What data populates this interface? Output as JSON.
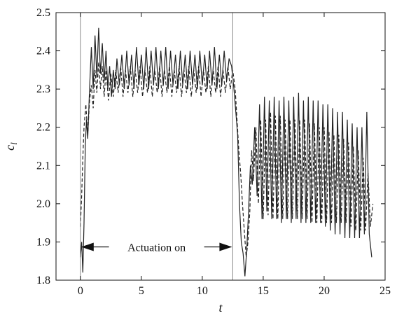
{
  "chart_data": {
    "type": "line",
    "xlabel": "t",
    "ylabel": "c",
    "ylabel_sub": "l",
    "xlim": [
      -2,
      25
    ],
    "ylim": [
      1.8,
      2.5
    ],
    "x_ticks": [
      0,
      5,
      10,
      15,
      20,
      25
    ],
    "x_tick_labels": [
      "0",
      "5",
      "10",
      "15",
      "20",
      "25"
    ],
    "y_ticks": [
      1.8,
      1.9,
      2.0,
      2.1,
      2.2,
      2.3,
      2.4,
      2.5
    ],
    "y_tick_labels": [
      "1.8",
      "1.9",
      "2.0",
      "2.1",
      "2.2",
      "2.3",
      "2.4",
      "2.5"
    ],
    "grid": false,
    "vertical_lines": [
      0,
      12.5
    ],
    "annotation": {
      "text": "Actuation on",
      "x_start": 0,
      "x_end": 12.5,
      "y": 1.887
    },
    "series": [
      {
        "style": "solid",
        "x": [
          0,
          0.1,
          0.2,
          0.3,
          0.4,
          0.5,
          0.6,
          0.75,
          0.9,
          1.05,
          1.2,
          1.35,
          1.5,
          1.65,
          1.8,
          1.95,
          2.1,
          2.25,
          2.4,
          2.55,
          2.7,
          2.85,
          3.0,
          3.2,
          3.4,
          3.6,
          3.8,
          4.0,
          4.2,
          4.4,
          4.6,
          4.8,
          5.0,
          5.2,
          5.4,
          5.6,
          5.8,
          6.0,
          6.2,
          6.4,
          6.6,
          6.8,
          7.0,
          7.2,
          7.4,
          7.6,
          7.8,
          8.0,
          8.2,
          8.4,
          8.6,
          8.8,
          9.0,
          9.2,
          9.4,
          9.6,
          9.8,
          10.0,
          10.2,
          10.4,
          10.6,
          10.8,
          11.0,
          11.2,
          11.4,
          11.6,
          11.8,
          12.0,
          12.2,
          12.4,
          12.6,
          12.75,
          12.9,
          13.05,
          13.2,
          13.35,
          13.5,
          13.65,
          13.8,
          13.95,
          14.1,
          14.3,
          14.5,
          14.7,
          14.9,
          15.1,
          15.3,
          15.5,
          15.7,
          15.9,
          16.1,
          16.3,
          16.5,
          16.7,
          16.9,
          17.1,
          17.3,
          17.5,
          17.7,
          17.9,
          18.1,
          18.3,
          18.5,
          18.7,
          18.9,
          19.1,
          19.3,
          19.5,
          19.7,
          19.9,
          20.1,
          20.3,
          20.5,
          20.7,
          20.9,
          21.1,
          21.3,
          21.5,
          21.7,
          21.9,
          22.1,
          22.3,
          22.5,
          22.7,
          22.9,
          23.1,
          23.3,
          23.5,
          23.7,
          23.9
        ],
        "y": [
          1.86,
          1.9,
          1.82,
          1.95,
          2.15,
          2.22,
          2.17,
          2.3,
          2.41,
          2.3,
          2.44,
          2.33,
          2.46,
          2.34,
          2.42,
          2.32,
          2.4,
          2.3,
          2.36,
          2.28,
          2.35,
          2.3,
          2.38,
          2.31,
          2.39,
          2.3,
          2.4,
          2.31,
          2.39,
          2.3,
          2.41,
          2.31,
          2.39,
          2.3,
          2.41,
          2.3,
          2.4,
          2.31,
          2.41,
          2.3,
          2.4,
          2.31,
          2.41,
          2.3,
          2.4,
          2.31,
          2.39,
          2.3,
          2.4,
          2.31,
          2.39,
          2.3,
          2.4,
          2.31,
          2.39,
          2.3,
          2.4,
          2.31,
          2.39,
          2.3,
          2.4,
          2.31,
          2.41,
          2.3,
          2.39,
          2.31,
          2.4,
          2.32,
          2.38,
          2.36,
          2.3,
          2.24,
          2.18,
          2.0,
          1.9,
          1.87,
          1.81,
          1.88,
          1.98,
          2.1,
          2.05,
          2.2,
          2.02,
          2.26,
          1.96,
          2.28,
          1.98,
          2.27,
          1.96,
          2.28,
          1.96,
          2.27,
          1.95,
          2.28,
          1.96,
          2.27,
          1.95,
          2.28,
          1.96,
          2.29,
          1.95,
          2.27,
          1.95,
          2.28,
          1.95,
          2.27,
          1.95,
          2.27,
          1.95,
          2.26,
          1.94,
          2.26,
          1.93,
          2.25,
          1.92,
          2.24,
          1.92,
          2.24,
          1.91,
          2.22,
          1.91,
          2.21,
          1.91,
          2.2,
          1.91,
          2.2,
          1.92,
          2.24,
          1.92,
          1.86
        ]
      },
      {
        "style": "dashed",
        "x": [
          0,
          0.1,
          0.2,
          0.3,
          0.45,
          0.6,
          0.75,
          0.9,
          1.05,
          1.2,
          1.35,
          1.5,
          1.65,
          1.8,
          1.95,
          2.1,
          2.3,
          2.5,
          2.7,
          2.9,
          3.1,
          3.3,
          3.5,
          3.7,
          3.9,
          4.1,
          4.3,
          4.5,
          4.7,
          4.9,
          5.1,
          5.3,
          5.5,
          5.7,
          5.9,
          6.1,
          6.3,
          6.5,
          6.7,
          6.9,
          7.1,
          7.3,
          7.5,
          7.7,
          7.9,
          8.1,
          8.3,
          8.5,
          8.7,
          8.9,
          9.1,
          9.3,
          9.5,
          9.7,
          9.9,
          10.1,
          10.3,
          10.5,
          10.7,
          10.9,
          11.1,
          11.3,
          11.5,
          11.7,
          11.9,
          12.1,
          12.3,
          12.5,
          12.7,
          12.85,
          13.0,
          13.15,
          13.3,
          13.45,
          13.6,
          13.75,
          13.9,
          14.05,
          14.2,
          14.4,
          14.6,
          14.8,
          15.0,
          15.2,
          15.4,
          15.6,
          15.8,
          16.0,
          16.2,
          16.4,
          16.6,
          16.8,
          17.0,
          17.2,
          17.4,
          17.6,
          17.8,
          18.0,
          18.2,
          18.4,
          18.6,
          18.8,
          19.0,
          19.2,
          19.4,
          19.6,
          19.8,
          20.0,
          20.2,
          20.4,
          20.6,
          20.8,
          21.0,
          21.2,
          21.4,
          21.6,
          21.8,
          22.0,
          22.2,
          22.4,
          22.6,
          22.8,
          23.0,
          23.2,
          23.4,
          23.6,
          23.8,
          24.0
        ],
        "y": [
          1.94,
          2.02,
          2.12,
          2.2,
          2.26,
          2.18,
          2.27,
          2.31,
          2.25,
          2.35,
          2.29,
          2.37,
          2.3,
          2.36,
          2.28,
          2.35,
          2.27,
          2.34,
          2.28,
          2.35,
          2.29,
          2.36,
          2.28,
          2.35,
          2.29,
          2.36,
          2.28,
          2.35,
          2.29,
          2.36,
          2.28,
          2.35,
          2.29,
          2.36,
          2.28,
          2.35,
          2.29,
          2.36,
          2.28,
          2.35,
          2.29,
          2.36,
          2.28,
          2.35,
          2.29,
          2.36,
          2.28,
          2.35,
          2.29,
          2.36,
          2.28,
          2.35,
          2.29,
          2.36,
          2.28,
          2.35,
          2.29,
          2.36,
          2.28,
          2.35,
          2.29,
          2.36,
          2.28,
          2.35,
          2.29,
          2.36,
          2.3,
          2.35,
          2.3,
          2.22,
          2.14,
          2.08,
          2.0,
          1.93,
          1.86,
          1.9,
          1.98,
          2.14,
          2.06,
          2.2,
          2.0,
          2.22,
          1.96,
          2.22,
          1.97,
          2.24,
          1.96,
          2.23,
          1.96,
          2.23,
          1.96,
          2.22,
          1.96,
          2.22,
          1.96,
          2.22,
          1.96,
          2.22,
          1.96,
          2.22,
          1.96,
          2.21,
          1.95,
          2.21,
          1.95,
          2.2,
          1.95,
          2.2,
          1.95,
          2.19,
          1.95,
          2.18,
          1.95,
          2.18,
          1.95,
          2.17,
          1.95,
          2.16,
          1.94,
          2.15,
          1.93,
          2.14,
          1.93,
          2.12,
          1.93,
          2.08,
          1.94,
          2.0
        ]
      }
    ]
  }
}
